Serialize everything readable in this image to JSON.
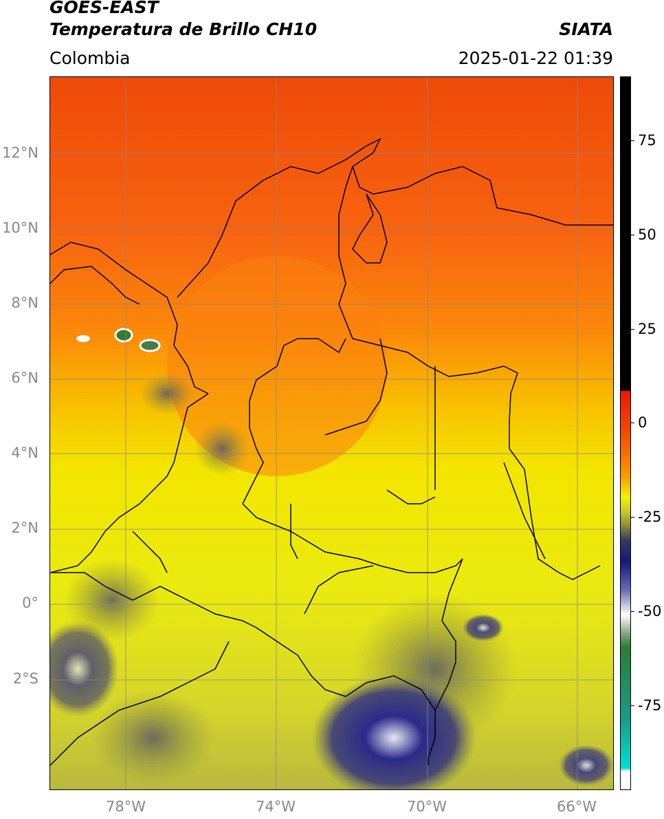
{
  "header": {
    "title_line1": "GOES-EAST",
    "title_line2": "Temperatura de Brillo CH10",
    "region": "Colombia",
    "organization": "SIATA",
    "datetime": "2025-01-22 01:39"
  },
  "map": {
    "lat_labels": [
      "12°N",
      "10°N",
      "8°N",
      "6°N",
      "4°N",
      "2°N",
      "0°",
      "2°S"
    ],
    "lon_labels": [
      "78°W",
      "74°W",
      "70°W",
      "66°W"
    ],
    "gridline_color": "#888888",
    "border_color": "#000000"
  },
  "colorbar": {
    "tick_labels": [
      "75",
      "50",
      "25",
      "0",
      "-25",
      "-50",
      "-75"
    ],
    "colors": {
      "warm_black": "#000000",
      "red": "#e8190b",
      "orange": "#fb7a00",
      "yellow": "#f3f300",
      "olive": "#8c8c3a",
      "navy": "#121a7a",
      "white": "#ffffff",
      "green": "#2e7d32",
      "cyan": "#00e0d0"
    }
  }
}
